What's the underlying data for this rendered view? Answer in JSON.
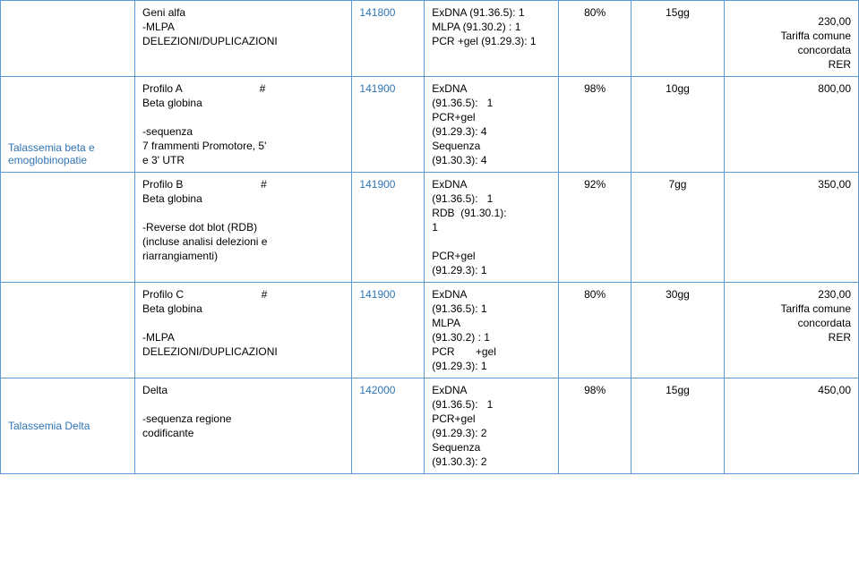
{
  "colors": {
    "border": "#5b9bd5",
    "blue_text": "#2e74b5",
    "black_text": "#000000",
    "background": "#ffffff"
  },
  "rows": [
    {
      "label": "",
      "desc_l1": "Geni alfa",
      "desc_l2": "-MLPA",
      "desc_l3": "DELEZIONI/DUPLICAZIONI",
      "code": "141800",
      "method_l1": "ExDNA (91.36.5): 1",
      "method_l2": "MLPA (91.30.2) : 1",
      "method_l3": "PCR +gel (91.29.3): 1",
      "pct": "80%",
      "days": "15gg",
      "price_l1": "230,00",
      "price_l2": "Tariffa comune",
      "price_l3": "concordata",
      "price_l4": "RER"
    },
    {
      "label": "Talassemia beta e emoglobinopatie",
      "desc_l1": "Profilo A                          #",
      "desc_l2": "Beta globina",
      "desc_l3": " ",
      "desc_l4": "-sequenza",
      "desc_l5": "7 frammenti Promotore, 5'",
      "desc_l6": "e 3' UTR",
      "code": "141900",
      "method_l1": "ExDNA",
      "method_l2": "(91.36.5):   1",
      "method_l3": "PCR+gel",
      "method_l4": "(91.29.3): 4",
      "method_l5": "Sequenza",
      "method_l6": "(91.30.3): 4",
      "pct": "98%",
      "days": "10gg",
      "price_l1": "800,00"
    },
    {
      "label": "",
      "desc_l1": "Profilo B                          #",
      "desc_l2": "Beta globina",
      "desc_l3": " ",
      "desc_l4": " -Reverse dot blot (RDB)",
      "desc_l5": "(incluse analisi delezioni e",
      "desc_l6": "riarrangiamenti)",
      "code": "141900",
      "method_l1": "ExDNA",
      "method_l2": "(91.36.5):   1",
      "method_l3": "RDB  (91.30.1):",
      "method_l4": "1",
      "method_l5": " ",
      "method_l6": "PCR+gel",
      "method_l7": "(91.29.3): 1",
      "pct": "92%",
      "days": "7gg",
      "price_l1": "350,00"
    },
    {
      "label": "",
      "desc_l1": "Profilo C                          #",
      "desc_l2": "Beta globina",
      "desc_l3": " ",
      "desc_l4": "-MLPA",
      "desc_l5": "DELEZIONI/DUPLICAZIONI",
      "code": "141900",
      "method_l1": "ExDNA",
      "method_l2": "(91.36.5): 1",
      "method_l3": "MLPA",
      "method_l4": "(91.30.2) : 1",
      "method_l5": "PCR       +gel",
      "method_l6": "(91.29.3): 1",
      "pct": "80%",
      "days": "30gg",
      "price_l1": "230,00",
      "price_l2": "Tariffa comune",
      "price_l3": "concordata",
      "price_l4": "RER"
    },
    {
      "label": "Talassemia Delta",
      "desc_l1": "Delta",
      "desc_l2": " ",
      "desc_l3": "-sequenza regione",
      "desc_l4": "codificante",
      "code": "142000",
      "method_l1": "ExDNA",
      "method_l2": "(91.36.5):   1",
      "method_l3": "PCR+gel",
      "method_l4": "(91.29.3): 2",
      "method_l5": "Sequenza",
      "method_l6": "(91.30.3): 2",
      "pct": "98%",
      "days": "15gg",
      "price_l1": "450,00"
    }
  ]
}
